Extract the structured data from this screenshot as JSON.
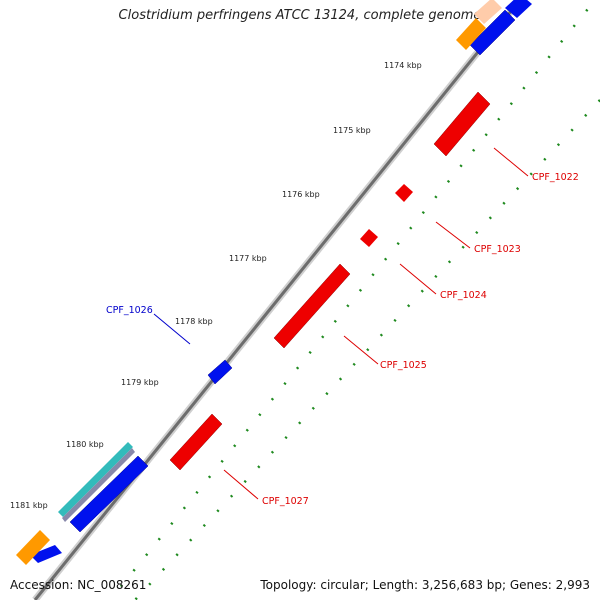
{
  "title": "Clostridium perfringens ATCC 13124, complete genome",
  "footer": {
    "accession": "Accession: NC_008261",
    "summary": "Topology: circular; Length: 3,256,683 bp; Genes: 2,993"
  },
  "scale_labels": [
    "1174 kbp",
    "1175 kbp",
    "1176 kbp",
    "1177 kbp",
    "1178 kbp",
    "1179 kbp",
    "1180 kbp",
    "1181 kbp"
  ],
  "gene_labels": [
    {
      "text": "CPF_1022",
      "color": "#dd0000"
    },
    {
      "text": "CPF_1023",
      "color": "#dd0000"
    },
    {
      "text": "CPF_1024",
      "color": "#dd0000"
    },
    {
      "text": "CPF_1025",
      "color": "#dd0000"
    },
    {
      "text": "CPF_1026",
      "color": "#0000cc"
    },
    {
      "text": "CPF_1027",
      "color": "#dd0000"
    }
  ],
  "colors": {
    "forward_gene": "#0000ff",
    "reverse_gene": "#ee0000",
    "rrna": "#ff9900",
    "trna": "#33bbbb",
    "backbone": "#777777",
    "tick": "#007700"
  }
}
